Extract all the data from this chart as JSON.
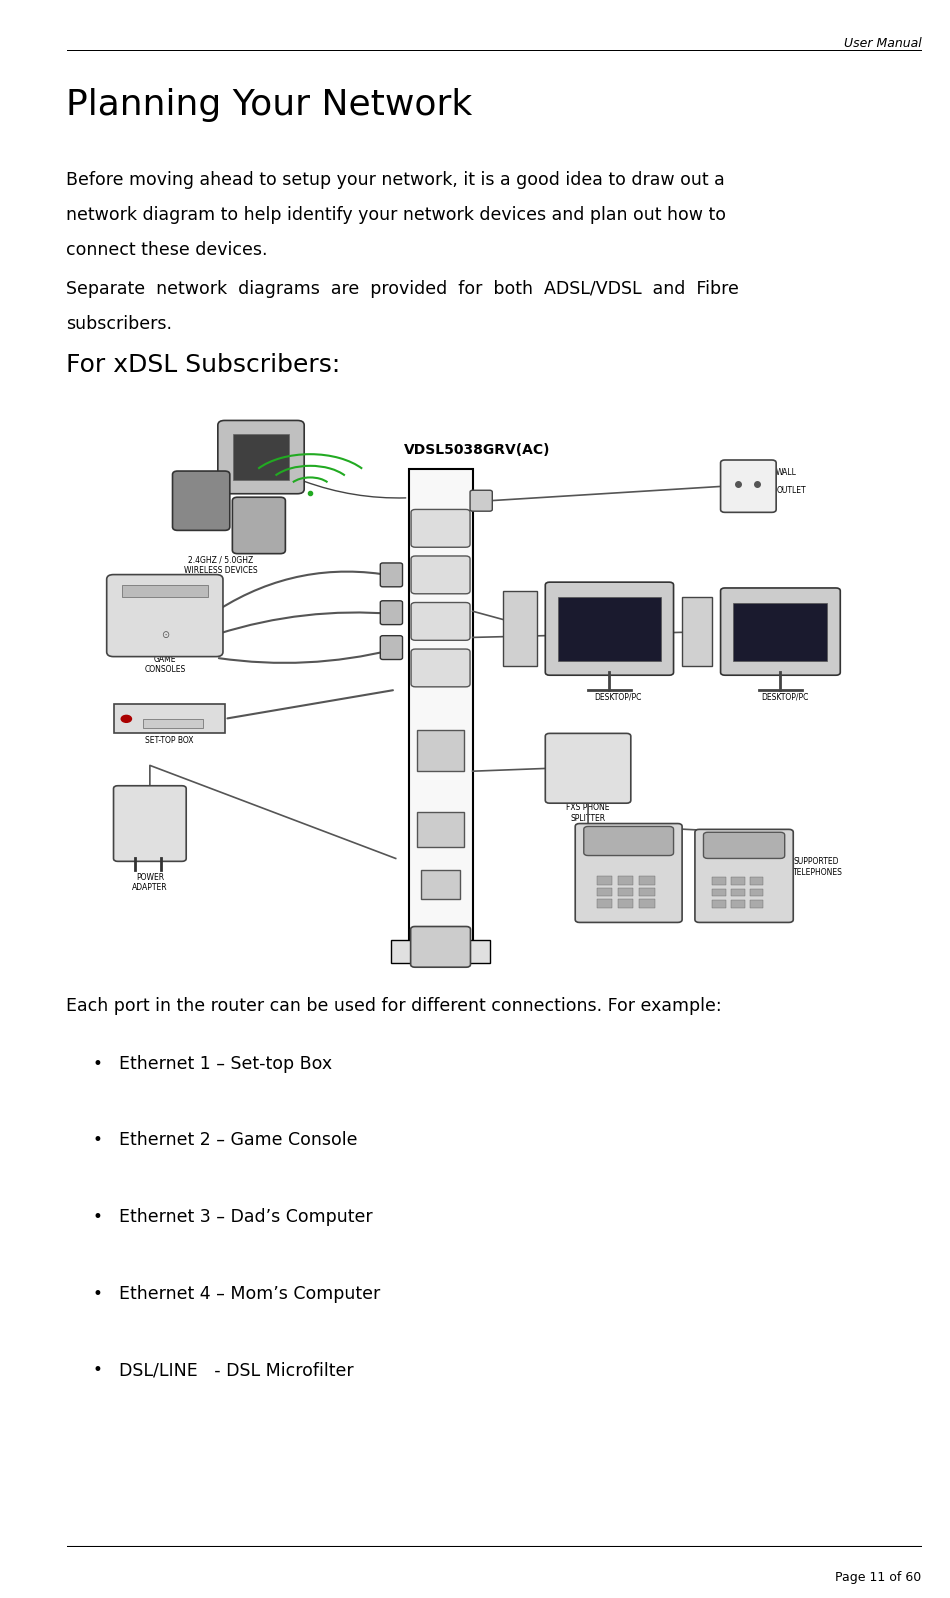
{
  "page_width": 9.5,
  "page_height": 15.98,
  "dpi": 100,
  "bg_color": "#ffffff",
  "header_text": "User Manual",
  "footer_text": "Page 11 of 60",
  "title": "Planning Your Network",
  "title_fontsize": 26,
  "body_fontsize": 12.5,
  "subtitle_fontsize": 18,
  "para1_line1": "Before moving ahead to setup your network, it is a good idea to draw out a",
  "para1_line2": "network diagram to help identify your network devices and plan out how to",
  "para1_line3": "connect these devices.",
  "para2_line1": "Separate  network  diagrams  are  provided  for  both  ADSL/VDSL  and  Fibre",
  "para2_line2": "subscribers.",
  "subtitle": "For xDSL Subscribers:",
  "after_diagram_text": "Each port in the router can be used for different connections. For example:",
  "bullet_items": [
    "Ethernet 1 – Set-top Box",
    "Ethernet 2 – Game Console",
    "Ethernet 3 – Dad’s Computer",
    "Ethernet 4 – Mom’s Computer",
    "DSL/LINE   - DSL Microfilter"
  ],
  "text_color": "#000000",
  "line_color": "#000000"
}
